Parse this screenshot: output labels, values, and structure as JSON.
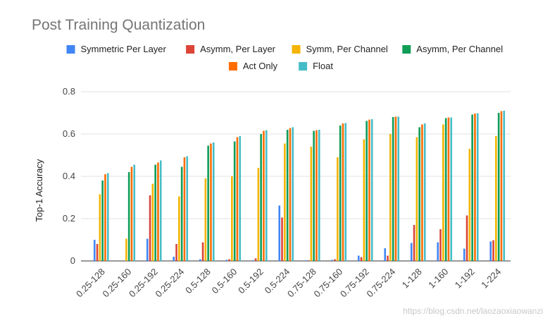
{
  "chart_data": {
    "type": "bar",
    "title": "Post Training Quantization",
    "xlabel": "",
    "ylabel": "Top-1 Accuracy",
    "ylim": [
      0,
      0.8
    ],
    "yticks": [
      "0",
      "0.2",
      "0.4",
      "0.6",
      "0.8"
    ],
    "ytick_values": [
      0,
      0.2,
      0.4,
      0.6,
      0.8
    ],
    "grid": true,
    "legend_position": "top",
    "categories": [
      "0.25-128",
      "0.25-160",
      "0.25-192",
      "0.25-224",
      "0.5-128",
      "0.5-160",
      "0.5-192",
      "0.5-224",
      "0.75-128",
      "0.75-160",
      "0.75-192",
      "0.75-224",
      "1-128",
      "1-160",
      "1-192",
      "1-224"
    ],
    "series": [
      {
        "name": "Symmetric Per Layer",
        "color": "#4285f4",
        "values": [
          0.1,
          0.0,
          0.105,
          0.02,
          0.008,
          0.005,
          0.003,
          0.262,
          0.003,
          0.005,
          0.025,
          0.06,
          0.085,
          0.088,
          0.058,
          0.092
        ]
      },
      {
        "name": "Asymm, Per Layer",
        "color": "#db4437",
        "values": [
          0.08,
          0.0,
          0.31,
          0.08,
          0.088,
          0.008,
          0.012,
          0.205,
          0.003,
          0.008,
          0.018,
          0.025,
          0.17,
          0.15,
          0.215,
          0.098
        ]
      },
      {
        "name": "Symm, Per Channel",
        "color": "#f4b400",
        "values": [
          0.315,
          0.105,
          0.365,
          0.305,
          0.39,
          0.4,
          0.44,
          0.555,
          0.54,
          0.49,
          0.575,
          0.6,
          0.585,
          0.645,
          0.53,
          0.59
        ]
      },
      {
        "name": "Asymm, Per Channel",
        "color": "#0f9d58",
        "values": [
          0.38,
          0.42,
          0.455,
          0.445,
          0.545,
          0.565,
          0.6,
          0.62,
          0.615,
          0.64,
          0.662,
          0.68,
          0.632,
          0.675,
          0.692,
          0.7
        ]
      },
      {
        "name": "Act Only",
        "color": "#ff6d00",
        "values": [
          0.41,
          0.445,
          0.465,
          0.49,
          0.555,
          0.585,
          0.615,
          0.628,
          0.618,
          0.65,
          0.668,
          0.682,
          0.645,
          0.678,
          0.697,
          0.708
        ]
      },
      {
        "name": "Float",
        "color": "#46bdc6",
        "values": [
          0.415,
          0.455,
          0.475,
          0.495,
          0.56,
          0.59,
          0.618,
          0.632,
          0.62,
          0.652,
          0.67,
          0.682,
          0.65,
          0.678,
          0.698,
          0.71
        ]
      }
    ]
  },
  "watermark": "https://blog.csdn.net/laozaoxiaowanzi"
}
